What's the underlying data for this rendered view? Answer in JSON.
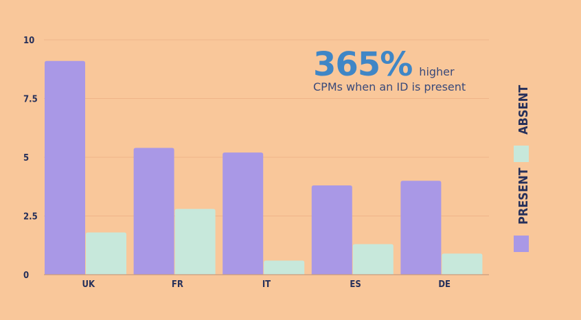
{
  "colors": {
    "background": "#f9c79a",
    "present": "#a998e6",
    "absent": "#c7e8db",
    "grid": "#efb489",
    "axis": "#c99b7e",
    "text": "#26305a",
    "accent": "#3f86c6"
  },
  "annotation": {
    "big": "365%",
    "small_suffix": "higher",
    "line2": "CPMs when an ID is present"
  },
  "chart_data": {
    "type": "bar",
    "categories": [
      "UK",
      "FR",
      "IT",
      "ES",
      "DE"
    ],
    "series": [
      {
        "name": "PRESENT",
        "values": [
          9.1,
          5.4,
          5.2,
          3.8,
          4.0
        ]
      },
      {
        "name": "ABSENT",
        "values": [
          1.8,
          2.8,
          0.6,
          1.3,
          0.9
        ]
      }
    ],
    "yticks": [
      0,
      2.5,
      5,
      7.5,
      10
    ],
    "ytick_labels": [
      "0",
      "2.5",
      "5",
      "7.5",
      "10"
    ],
    "ylim": [
      0,
      10
    ],
    "grid": true,
    "legend": "right, vertical"
  }
}
